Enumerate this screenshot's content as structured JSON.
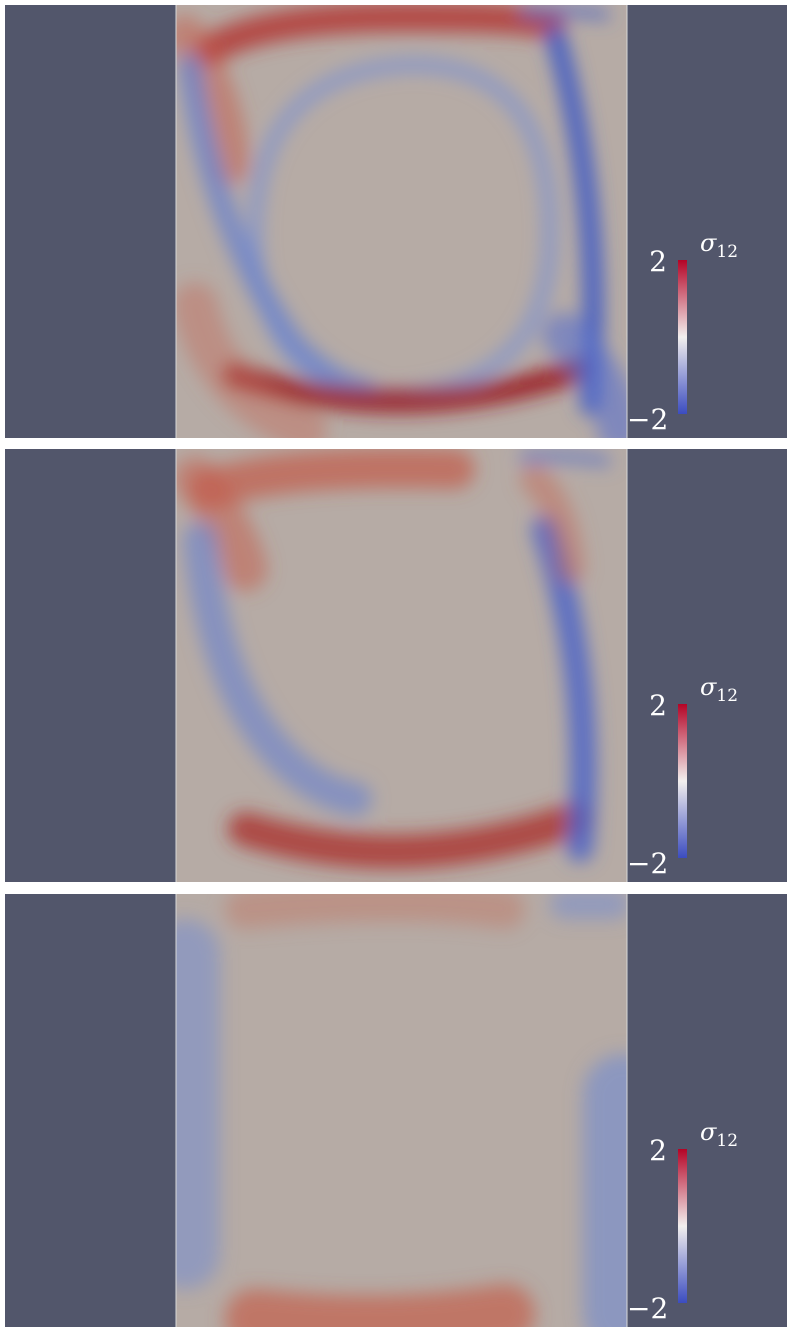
{
  "panels": [
    {
      "colorbar": {
        "symbol": "σ",
        "subscript": "12",
        "max": "2",
        "min": "−2"
      }
    },
    {
      "colorbar": {
        "symbol": "σ",
        "subscript": "12",
        "max": "2",
        "min": "−2"
      }
    },
    {
      "colorbar": {
        "symbol": "σ",
        "subscript": "12",
        "max": "2",
        "min": "−2"
      }
    }
  ]
}
